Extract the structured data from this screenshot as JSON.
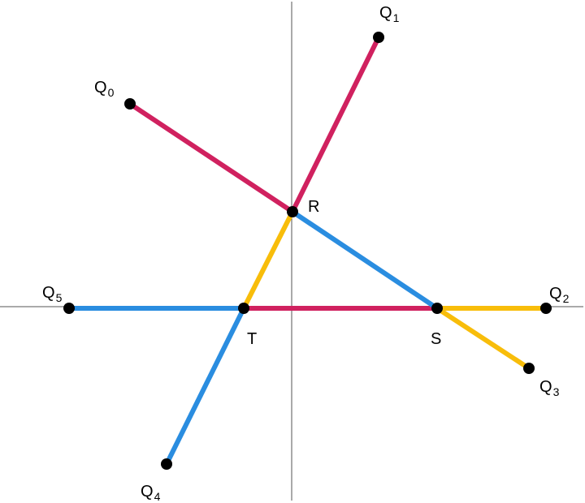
{
  "colors": {
    "magenta": "#d0215f",
    "blue": "#2a8de0",
    "gold": "#f8bd0a",
    "axis": "#555555",
    "point": "#000000"
  },
  "points": {
    "R": {
      "base": "R",
      "sub": ""
    },
    "S": {
      "base": "S",
      "sub": ""
    },
    "T": {
      "base": "T",
      "sub": ""
    },
    "Q0": {
      "base": "Q",
      "sub": "0"
    },
    "Q1": {
      "base": "Q",
      "sub": "1"
    },
    "Q2": {
      "base": "Q",
      "sub": "2"
    },
    "Q3": {
      "base": "Q",
      "sub": "3"
    },
    "Q4": {
      "base": "Q",
      "sub": "4"
    },
    "Q5": {
      "base": "Q",
      "sub": "5"
    }
  },
  "segments": [
    {
      "from": "Q0",
      "to": "R",
      "color": "magenta"
    },
    {
      "from": "R",
      "to": "Q1",
      "color": "magenta"
    },
    {
      "from": "T",
      "to": "S",
      "color": "magenta"
    },
    {
      "from": "R",
      "to": "S",
      "color": "blue"
    },
    {
      "from": "Q5",
      "to": "T",
      "color": "blue"
    },
    {
      "from": "T",
      "to": "Q4",
      "color": "blue"
    },
    {
      "from": "R",
      "to": "T",
      "color": "gold"
    },
    {
      "from": "S",
      "to": "Q2",
      "color": "gold"
    },
    {
      "from": "S",
      "to": "Q3",
      "color": "gold"
    }
  ]
}
